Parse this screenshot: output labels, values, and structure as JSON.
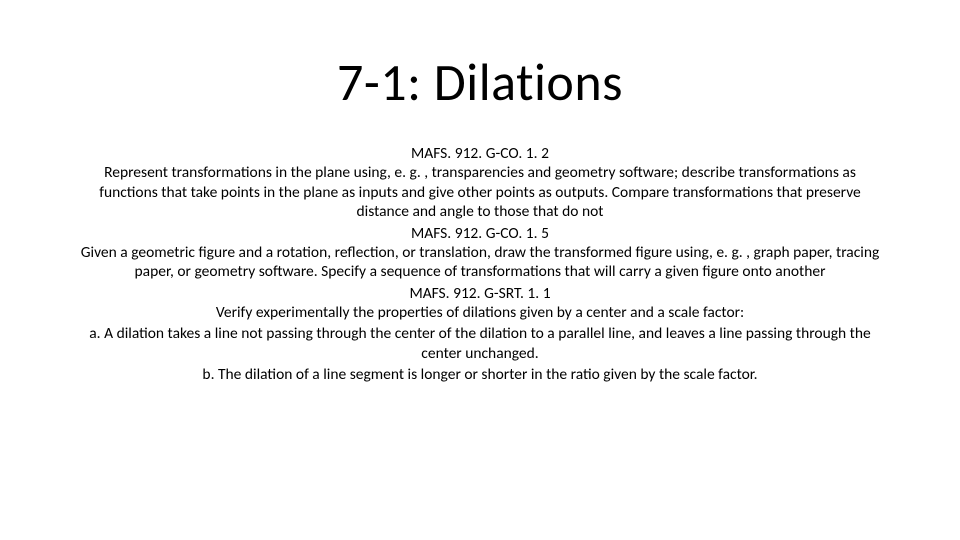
{
  "title": "7-1: Dilations",
  "standards": {
    "s1": {
      "code": "MAFS. 912. G-CO. 1. 2",
      "text": "Represent transformations in the plane using, e. g. , transparencies and geometry software; describe transformations as functions that take points in the plane as inputs and give other points as outputs. Compare transformations that preserve distance and angle to those that do not"
    },
    "s2": {
      "code": "MAFS. 912. G-CO. 1. 5",
      "text": "Given a geometric figure and a rotation, reflection, or translation, draw the transformed figure using, e. g. , graph paper, tracing paper, or geometry software. Specify a sequence of transformations that will carry a given figure onto another"
    },
    "s3": {
      "code": "MAFS. 912. G-SRT. 1. 1",
      "text": "Verify experimentally the properties of dilations given by a center and a scale factor:",
      "a": "a. A dilation takes a line not passing through the center of the dilation to a parallel line, and leaves a line passing through the center unchanged.",
      "b": "b. The dilation of a line segment is longer or shorter in the ratio given by the scale factor."
    }
  },
  "style": {
    "background_color": "#ffffff",
    "text_color": "#000000",
    "font_family": "Calibri",
    "title_fontsize": 52,
    "body_fontsize": 15.5,
    "slide_width": 960,
    "slide_height": 540
  }
}
